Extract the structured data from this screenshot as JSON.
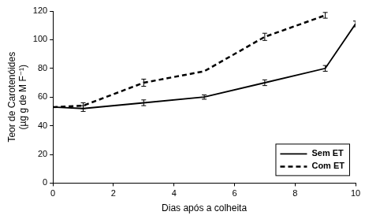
{
  "chart_data": {
    "type": "line",
    "x_label": "Dias após a colheita",
    "y_label": [
      "Teor de Carotenóides",
      "(µg g de M F⁻¹)"
    ],
    "xlim": [
      0,
      10
    ],
    "xticks": [
      0,
      2,
      4,
      6,
      8,
      10
    ],
    "ylim": [
      0,
      120
    ],
    "yticks": [
      0,
      20,
      40,
      60,
      80,
      100,
      120
    ],
    "grid": false,
    "legend": "lower right",
    "series": [
      {
        "name": "Sem ET",
        "color": "#000000",
        "line_style": "solid",
        "x": [
          0,
          1,
          3,
          5,
          7,
          9,
          10
        ],
        "values": [
          53,
          52,
          56,
          60,
          70,
          80,
          111
        ],
        "errors": [
          0,
          2,
          2,
          1.5,
          2,
          2,
          2
        ]
      },
      {
        "name": "Com ET",
        "color": "#000000",
        "line_style": "dashed",
        "x": [
          0,
          1,
          3,
          5,
          7,
          9
        ],
        "values": [
          53,
          54,
          70,
          78,
          102,
          117
        ],
        "errors": [
          0,
          2,
          2.5,
          0,
          2.5,
          2
        ]
      }
    ]
  }
}
